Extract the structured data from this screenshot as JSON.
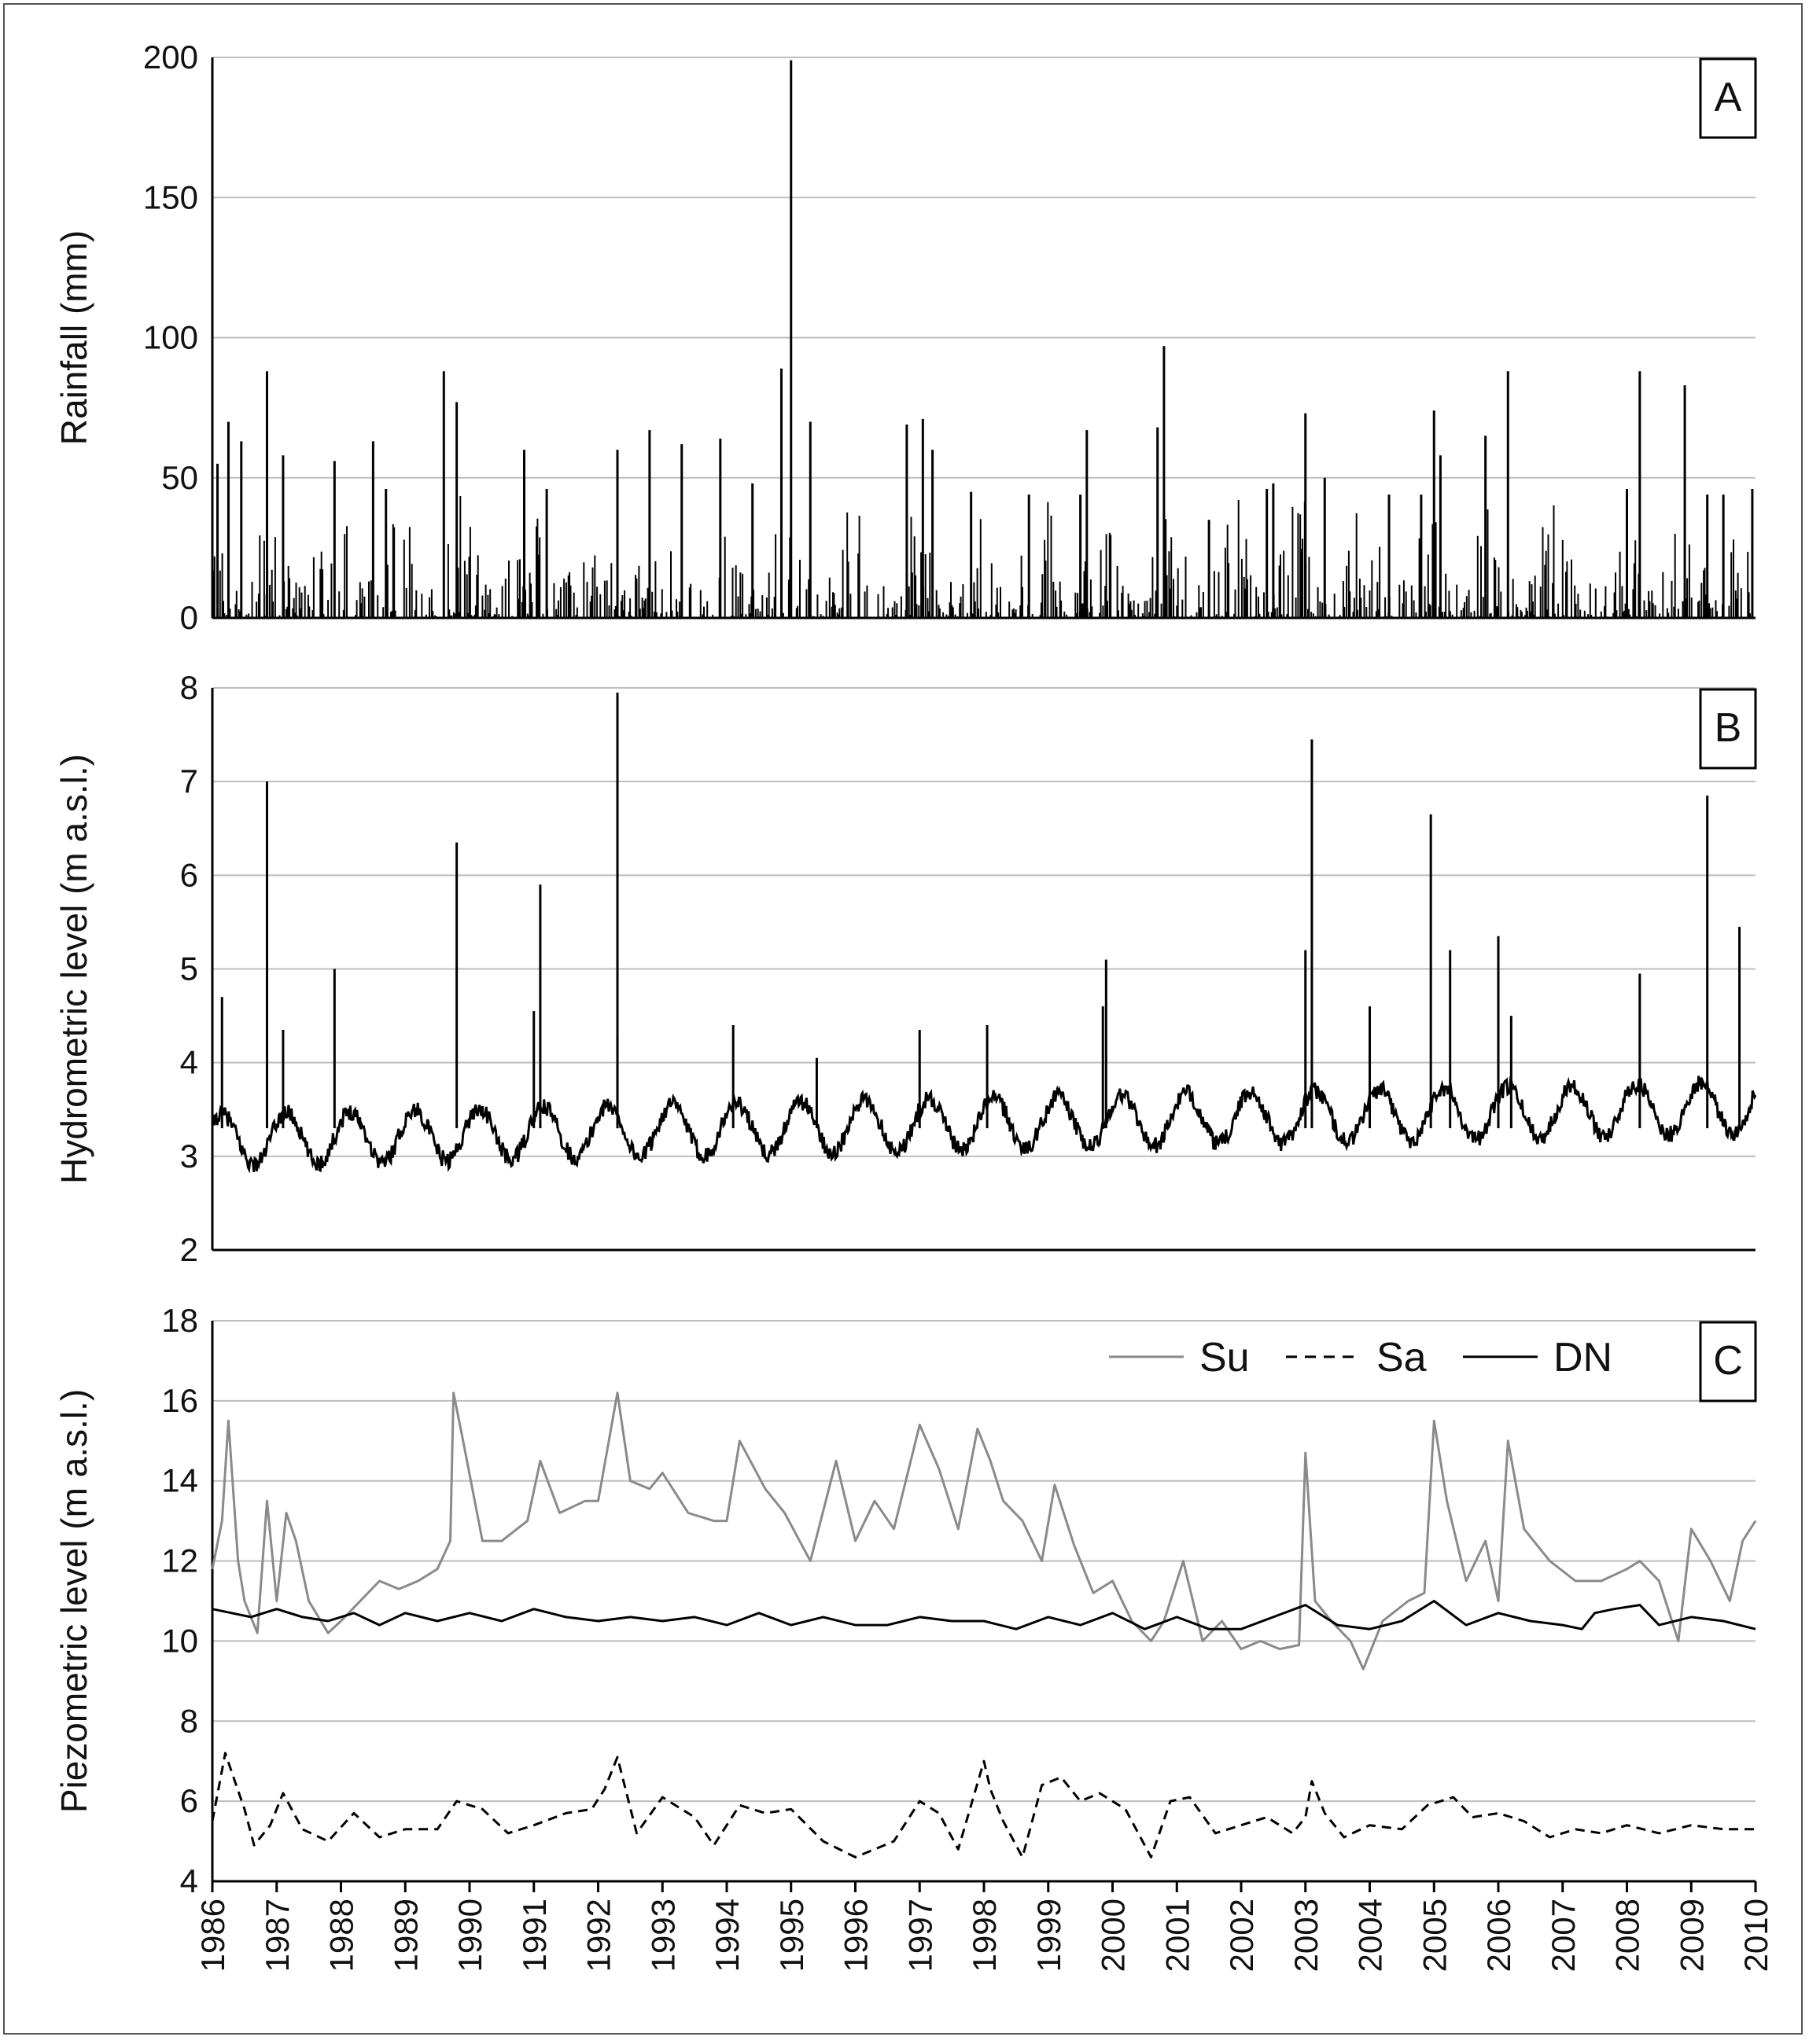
{
  "chart_data": [
    {
      "panel": "A",
      "type": "bar",
      "ylabel": "Rainfall (mm)",
      "ylim": [
        0,
        200
      ],
      "yticks": [
        0,
        50,
        100,
        150,
        200
      ],
      "xlim": [
        1986,
        2010
      ],
      "grid": "horizontal",
      "color": "#000000",
      "peaks": [
        {
          "x": 1986.08,
          "y": 55
        },
        {
          "x": 1986.25,
          "y": 70
        },
        {
          "x": 1986.45,
          "y": 63
        },
        {
          "x": 1986.85,
          "y": 88
        },
        {
          "x": 1987.1,
          "y": 58
        },
        {
          "x": 1987.9,
          "y": 56
        },
        {
          "x": 1988.5,
          "y": 63
        },
        {
          "x": 1988.7,
          "y": 46
        },
        {
          "x": 1989.6,
          "y": 88
        },
        {
          "x": 1989.8,
          "y": 77
        },
        {
          "x": 1990.85,
          "y": 60
        },
        {
          "x": 1991.2,
          "y": 46
        },
        {
          "x": 1992.3,
          "y": 60
        },
        {
          "x": 1992.8,
          "y": 67
        },
        {
          "x": 1993.3,
          "y": 62
        },
        {
          "x": 1993.9,
          "y": 64
        },
        {
          "x": 1994.4,
          "y": 48
        },
        {
          "x": 1994.85,
          "y": 89
        },
        {
          "x": 1995.0,
          "y": 199
        },
        {
          "x": 1995.3,
          "y": 70
        },
        {
          "x": 1996.8,
          "y": 69
        },
        {
          "x": 1997.05,
          "y": 71
        },
        {
          "x": 1997.2,
          "y": 60
        },
        {
          "x": 1997.8,
          "y": 45
        },
        {
          "x": 1998.7,
          "y": 44
        },
        {
          "x": 1999.5,
          "y": 44
        },
        {
          "x": 1999.6,
          "y": 67
        },
        {
          "x": 2000.7,
          "y": 68
        },
        {
          "x": 2000.8,
          "y": 97
        },
        {
          "x": 2001.5,
          "y": 35
        },
        {
          "x": 2002.4,
          "y": 46
        },
        {
          "x": 2002.5,
          "y": 48
        },
        {
          "x": 2003.0,
          "y": 73
        },
        {
          "x": 2003.3,
          "y": 50
        },
        {
          "x": 2004.3,
          "y": 44
        },
        {
          "x": 2004.8,
          "y": 44
        },
        {
          "x": 2005.0,
          "y": 74
        },
        {
          "x": 2005.1,
          "y": 58
        },
        {
          "x": 2005.8,
          "y": 65
        },
        {
          "x": 2006.15,
          "y": 88
        },
        {
          "x": 2008.0,
          "y": 46
        },
        {
          "x": 2008.2,
          "y": 88
        },
        {
          "x": 2008.9,
          "y": 83
        },
        {
          "x": 2009.25,
          "y": 44
        },
        {
          "x": 2009.5,
          "y": 44
        },
        {
          "x": 2009.95,
          "y": 46
        }
      ],
      "annotation": "A"
    },
    {
      "panel": "B",
      "type": "line",
      "ylabel": "Hydrometric level (m a.s.l.)",
      "ylim": [
        2,
        8
      ],
      "yticks": [
        2,
        3,
        4,
        5,
        6,
        7,
        8
      ],
      "xlim": [
        1986,
        2010
      ],
      "grid": "horizontal",
      "color": "#000000",
      "peaks": [
        {
          "x": 1986.15,
          "y": 4.7
        },
        {
          "x": 1986.85,
          "y": 7.0
        },
        {
          "x": 1987.1,
          "y": 4.35
        },
        {
          "x": 1987.9,
          "y": 5.0
        },
        {
          "x": 1989.8,
          "y": 6.35
        },
        {
          "x": 1991.0,
          "y": 4.55
        },
        {
          "x": 1991.1,
          "y": 5.9
        },
        {
          "x": 1992.3,
          "y": 4.3
        },
        {
          "x": 1992.3,
          "y": 7.95
        },
        {
          "x": 1994.1,
          "y": 4.4
        },
        {
          "x": 1995.4,
          "y": 4.05
        },
        {
          "x": 1997.0,
          "y": 4.35
        },
        {
          "x": 1998.05,
          "y": 4.4
        },
        {
          "x": 1999.85,
          "y": 4.6
        },
        {
          "x": 1999.9,
          "y": 5.1
        },
        {
          "x": 2003.0,
          "y": 5.2
        },
        {
          "x": 2003.1,
          "y": 7.45
        },
        {
          "x": 2004.0,
          "y": 4.6
        },
        {
          "x": 2004.95,
          "y": 6.65
        },
        {
          "x": 2005.25,
          "y": 5.2
        },
        {
          "x": 2006.0,
          "y": 5.35
        },
        {
          "x": 2006.2,
          "y": 4.5
        },
        {
          "x": 2008.2,
          "y": 4.95
        },
        {
          "x": 2009.25,
          "y": 6.85
        },
        {
          "x": 2009.75,
          "y": 5.45
        }
      ],
      "baseline_range": [
        2.8,
        3.8
      ],
      "annotation": "B"
    },
    {
      "panel": "C",
      "type": "line",
      "ylabel": "Piezometric level (m a.s.l.)",
      "ylim": [
        4,
        18
      ],
      "yticks": [
        4,
        6,
        8,
        10,
        12,
        14,
        16,
        18
      ],
      "xlim": [
        1986,
        2010
      ],
      "xticks": [
        1986,
        1987,
        1988,
        1989,
        1990,
        1991,
        1992,
        1993,
        1994,
        1995,
        1996,
        1997,
        1998,
        1999,
        2000,
        2001,
        2002,
        2003,
        2004,
        2005,
        2006,
        2007,
        2008,
        2009,
        2010
      ],
      "grid": "horizontal",
      "legend_position": "top-right",
      "annotation": "C",
      "series": [
        {
          "name": "Su",
          "style": "solid",
          "color": "#8a8a8a",
          "x": [
            1986.0,
            1986.15,
            1986.25,
            1986.4,
            1986.5,
            1986.7,
            1986.85,
            1987.0,
            1987.15,
            1987.3,
            1987.5,
            1987.8,
            1988.0,
            1988.3,
            1988.6,
            1988.9,
            1989.2,
            1989.5,
            1989.7,
            1989.75,
            1989.9,
            1990.2,
            1990.5,
            1990.9,
            1991.1,
            1991.4,
            1991.8,
            1992.0,
            1992.3,
            1992.5,
            1992.8,
            1993.0,
            1993.4,
            1993.8,
            1994.0,
            1994.2,
            1994.6,
            1994.9,
            1995.3,
            1995.7,
            1996.0,
            1996.3,
            1996.6,
            1997.0,
            1997.3,
            1997.6,
            1997.9,
            1998.1,
            1998.3,
            1998.6,
            1998.9,
            1999.1,
            1999.4,
            1999.7,
            2000.0,
            2000.3,
            2000.6,
            2000.8,
            2001.1,
            2001.4,
            2001.7,
            2002.0,
            2002.3,
            2002.6,
            2002.9,
            2003.0,
            2003.15,
            2003.4,
            2003.7,
            2003.9,
            2004.2,
            2004.6,
            2004.85,
            2005.0,
            2005.2,
            2005.5,
            2005.8,
            2006.0,
            2006.15,
            2006.4,
            2006.8,
            2007.2,
            2007.6,
            2008.0,
            2008.2,
            2008.5,
            2008.8,
            2009.0,
            2009.3,
            2009.6,
            2009.8,
            2010.0
          ],
          "y": [
            11.8,
            13.0,
            15.5,
            12.0,
            11.0,
            10.2,
            13.5,
            11.0,
            13.2,
            12.5,
            11.0,
            10.2,
            10.5,
            11.0,
            11.5,
            11.3,
            11.5,
            11.8,
            12.5,
            16.2,
            15.0,
            12.5,
            12.5,
            13.0,
            14.5,
            13.2,
            13.5,
            13.5,
            16.2,
            14.0,
            13.8,
            14.2,
            13.2,
            13.0,
            13.0,
            15.0,
            13.8,
            13.2,
            12.0,
            14.5,
            12.5,
            13.5,
            12.8,
            15.4,
            14.3,
            12.8,
            15.3,
            14.5,
            13.5,
            13.0,
            12.0,
            13.9,
            12.4,
            11.2,
            11.5,
            10.5,
            10.0,
            10.5,
            12.0,
            10.0,
            10.5,
            9.8,
            10.0,
            9.8,
            9.9,
            14.7,
            11.0,
            10.5,
            10.0,
            9.3,
            10.5,
            11.0,
            11.2,
            15.5,
            13.5,
            11.5,
            12.5,
            11.0,
            15.0,
            12.8,
            12.0,
            11.5,
            11.5,
            11.8,
            12.0,
            11.5,
            10.0,
            12.8,
            12.0,
            11.0,
            12.5,
            13.0
          ]
        },
        {
          "name": "Sa",
          "style": "dashed",
          "color": "#000000",
          "x": [
            1986.0,
            1986.2,
            1986.35,
            1986.5,
            1986.65,
            1986.9,
            1987.1,
            1987.4,
            1987.8,
            1988.2,
            1988.6,
            1989.0,
            1989.5,
            1989.8,
            1990.2,
            1990.6,
            1991.0,
            1991.5,
            1991.9,
            1992.1,
            1992.3,
            1992.6,
            1993.0,
            1993.5,
            1993.8,
            1994.2,
            1994.6,
            1995.0,
            1995.5,
            1996.0,
            1996.3,
            1996.6,
            1997.0,
            1997.3,
            1997.6,
            1998.0,
            1998.1,
            1998.3,
            1998.6,
            1998.9,
            1999.2,
            1999.5,
            1999.8,
            2000.2,
            2000.6,
            2000.9,
            2001.2,
            2001.6,
            2002.0,
            2002.4,
            2002.8,
            2003.0,
            2003.1,
            2003.3,
            2003.6,
            2004.0,
            2004.5,
            2004.9,
            2005.3,
            2005.6,
            2006.0,
            2006.4,
            2006.8,
            2007.2,
            2007.6,
            2008.0,
            2008.5,
            2009.0,
            2009.5,
            2010.0
          ],
          "y": [
            5.5,
            7.2,
            6.5,
            5.8,
            4.9,
            5.4,
            6.2,
            5.3,
            5.0,
            5.7,
            5.1,
            5.3,
            5.3,
            6.0,
            5.8,
            5.2,
            5.4,
            5.7,
            5.8,
            6.3,
            7.1,
            5.2,
            6.1,
            5.6,
            4.9,
            5.9,
            5.7,
            5.8,
            5.0,
            4.6,
            4.8,
            5.0,
            6.0,
            5.7,
            4.8,
            7.0,
            6.3,
            5.5,
            4.6,
            6.4,
            6.6,
            6.0,
            6.2,
            5.8,
            4.6,
            6.0,
            6.1,
            5.2,
            5.4,
            5.6,
            5.2,
            5.6,
            6.5,
            5.7,
            5.1,
            5.4,
            5.3,
            5.9,
            6.1,
            5.6,
            5.7,
            5.5,
            5.1,
            5.3,
            5.2,
            5.4,
            5.2,
            5.4,
            5.3,
            5.3
          ]
        },
        {
          "name": "DN",
          "style": "solid",
          "color": "#000000",
          "x": [
            1986.0,
            1986.3,
            1986.6,
            1987.0,
            1987.4,
            1987.8,
            1988.2,
            1988.6,
            1989.0,
            1989.5,
            1990.0,
            1990.5,
            1991.0,
            1991.5,
            1992.0,
            1992.5,
            1993.0,
            1993.5,
            1994.0,
            1994.5,
            1995.0,
            1995.5,
            1996.0,
            1996.5,
            1997.0,
            1997.5,
            1998.0,
            1998.5,
            1999.0,
            1999.5,
            2000.0,
            2000.5,
            2001.0,
            2001.5,
            2002.0,
            2002.5,
            2003.0,
            2003.5,
            2004.0,
            2004.5,
            2005.0,
            2005.5,
            2006.0,
            2006.5,
            2007.0,
            2007.3,
            2007.5,
            2007.8,
            2008.2,
            2008.5,
            2009.0,
            2009.5,
            2010.0
          ],
          "y": [
            10.8,
            10.7,
            10.6,
            10.8,
            10.6,
            10.5,
            10.7,
            10.4,
            10.7,
            10.5,
            10.7,
            10.5,
            10.8,
            10.6,
            10.5,
            10.6,
            10.5,
            10.6,
            10.4,
            10.7,
            10.4,
            10.6,
            10.4,
            10.4,
            10.6,
            10.5,
            10.5,
            10.3,
            10.6,
            10.4,
            10.7,
            10.3,
            10.6,
            10.3,
            10.3,
            10.6,
            10.9,
            10.4,
            10.3,
            10.5,
            11.0,
            10.4,
            10.7,
            10.5,
            10.4,
            10.3,
            10.7,
            10.8,
            10.9,
            10.4,
            10.6,
            10.5,
            10.3
          ]
        }
      ]
    }
  ]
}
